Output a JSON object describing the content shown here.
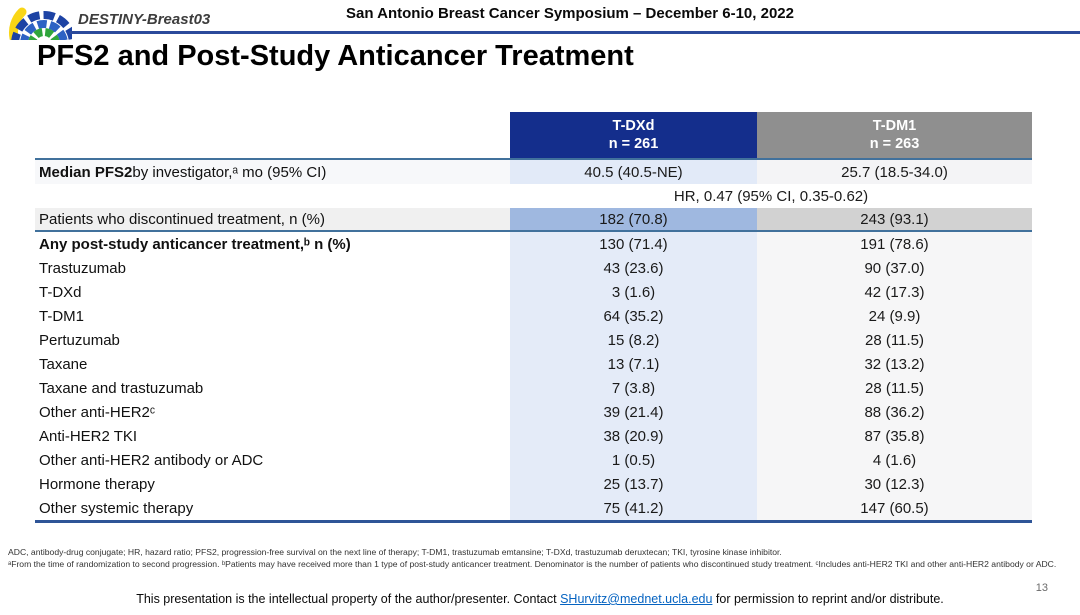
{
  "header": {
    "logo_icon": "sabcs-fan-logo",
    "study_name": "DESTINY-Breast03",
    "conference_title": "San Antonio Breast Cancer Symposium – December 6-10, 2022"
  },
  "slide_title": "PFS2 and Post-Study Anticancer Treatment",
  "table": {
    "columns": [
      {
        "label": "T-DXd",
        "n": "n = 261",
        "header_color": "#142e8c"
      },
      {
        "label": "T-DM1",
        "n": "n = 263",
        "header_color": "#8f8f8f"
      }
    ],
    "rows": [
      {
        "kind": "median",
        "label_bold": "Median PFS2",
        "label": " by investigator,ᵃ mo (95% CI)",
        "indent": 0,
        "values": [
          "40.5 (40.5-NE)",
          "25.7 (18.5-34.0)"
        ]
      },
      {
        "kind": "hr",
        "label": "",
        "span_value": "HR, 0.47 (95% CI, 0.35-0.62)"
      },
      {
        "kind": "discontinued",
        "label": "Patients who discontinued treatment, n (%)",
        "indent": 0,
        "values": [
          "182 (70.8)",
          "243 (93.1)"
        ]
      },
      {
        "kind": "data",
        "bold": true,
        "indent": 1,
        "label": "Any post-study anticancer treatment,ᵇ n (%)",
        "values": [
          "130 (71.4)",
          "191 (78.6)"
        ]
      },
      {
        "kind": "data",
        "indent": 2,
        "label": "Trastuzumab",
        "values": [
          "43 (23.6)",
          "90 (37.0)"
        ]
      },
      {
        "kind": "data",
        "indent": 2,
        "label": "T-DXd",
        "values": [
          "3 (1.6)",
          "42 (17.3)"
        ]
      },
      {
        "kind": "data",
        "indent": 2,
        "label": "T-DM1",
        "values": [
          "64 (35.2)",
          "24 (9.9)"
        ]
      },
      {
        "kind": "data",
        "indent": 2,
        "label": "Pertuzumab",
        "values": [
          "15 (8.2)",
          "28 (11.5)"
        ]
      },
      {
        "kind": "data",
        "indent": 2,
        "label": "Taxane",
        "values": [
          "13 (7.1)",
          "32 (13.2)"
        ]
      },
      {
        "kind": "data",
        "indent": 2,
        "label": "Taxane and trastuzumab",
        "values": [
          "7 (3.8)",
          "28 (11.5)"
        ]
      },
      {
        "kind": "data",
        "indent": 2,
        "label": "Other anti-HER2ᶜ",
        "values": [
          "39 (21.4)",
          "88 (36.2)"
        ]
      },
      {
        "kind": "data",
        "indent": 3,
        "label": "Anti-HER2 TKI",
        "values": [
          "38 (20.9)",
          "87 (35.8)"
        ]
      },
      {
        "kind": "data",
        "indent": 3,
        "label": "Other anti-HER2 antibody or ADC",
        "values": [
          "1 (0.5)",
          "4 (1.6)"
        ]
      },
      {
        "kind": "data",
        "indent": 2,
        "label": "Hormone therapy",
        "values": [
          "25 (13.7)",
          "30 (12.3)"
        ]
      },
      {
        "kind": "data",
        "indent": 2,
        "label": "Other systemic therapy",
        "values": [
          "75 (41.2)",
          "147 (60.5)"
        ]
      }
    ]
  },
  "footnotes": {
    "abbreviations": "ADC, antibody-drug conjugate; HR, hazard ratio; PFS2, progression-free survival on the next line of therapy; T-DM1, trastuzumab emtansine; T-DXd, trastuzumab deruxtecan; TKI, tyrosine kinase inhibitor.",
    "notes": "ᵃFrom the time of randomization to second progression. ᵇPatients may have received more than 1 type of post-study anticancer treatment. Denominator is the number of patients who discontinued study treatment. ᶜIncludes anti-HER2 TKI and other anti-HER2 antibody or ADC."
  },
  "footer": {
    "statement_prefix": "This presentation is the intellectual property of the author/presenter. Contact ",
    "email": "SHurvitz@mednet.ucla.edu",
    "statement_suffix": " for permission to reprint and/or distribute.",
    "page_number": "13"
  },
  "colors": {
    "tdxd_header": "#142e8c",
    "tdm1_header": "#8f8f8f",
    "tdxd_column": "#e4ebf8",
    "tdm1_column": "#f6f6f7",
    "tdxd_highlight": "#9fb8e0",
    "tdm1_highlight": "#d2d2d2",
    "rule_blue": "#41719c",
    "header_rule": "#2b4a9b",
    "link": "#0563c1"
  }
}
